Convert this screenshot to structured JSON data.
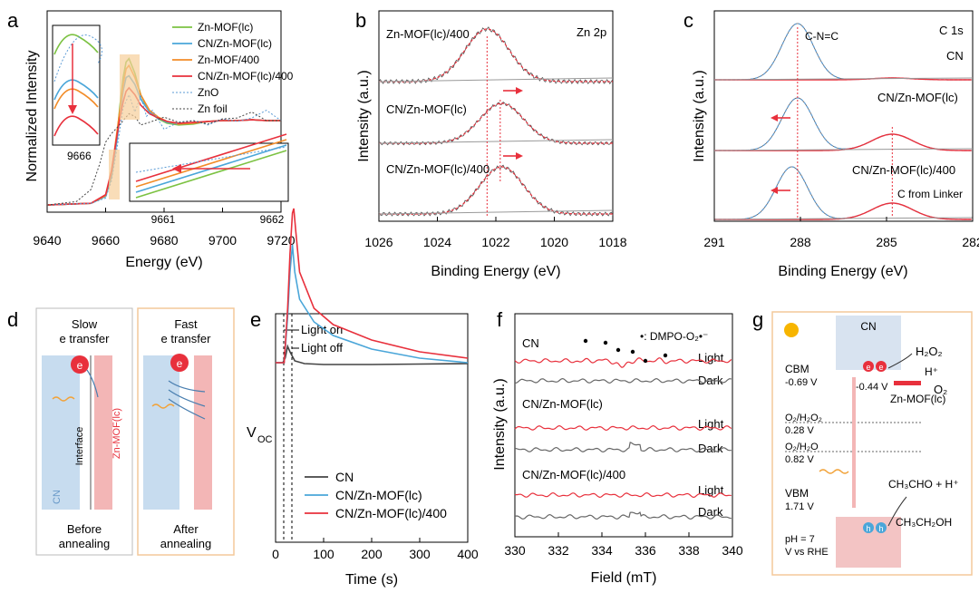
{
  "colors": {
    "green": "#7cc242",
    "blue": "#4aa6d9",
    "orange": "#f28c28",
    "red": "#e8303c",
    "darkgray": "#444444",
    "gray": "#8c8c8c",
    "fitblue": "#5b9bd5",
    "peach": "#f6cf9a",
    "panelBorder": "#f4c99a",
    "panelBg": "#fdf3e6"
  },
  "chart_data": [
    {
      "panel": "a",
      "type": "line",
      "xlabel": "Energy (eV)",
      "ylabel": "Normalized Intensity",
      "xlim": [
        9640,
        9720
      ],
      "xticks": [
        "9640",
        "9660",
        "9680",
        "9700",
        "9720"
      ],
      "series": [
        {
          "name": "Zn-MOF(lc)",
          "color": "green",
          "x": [
            9640,
            9655,
            9660,
            9662,
            9664,
            9665,
            9666,
            9667,
            9668,
            9670,
            9672,
            9675,
            9678,
            9681,
            9685,
            9690,
            9695,
            9700,
            9705,
            9710,
            9715,
            9720
          ],
          "y": [
            0.02,
            0.04,
            0.12,
            0.35,
            0.85,
            1.2,
            1.5,
            1.68,
            1.72,
            1.55,
            1.3,
            1.1,
            1.02,
            0.97,
            0.95,
            0.96,
            0.99,
            1.0,
            1.0,
            1.01,
            1.0,
            1.0
          ]
        },
        {
          "name": "CN/Zn-MOF(lc)",
          "color": "blue",
          "x": [
            9640,
            9655,
            9660,
            9662,
            9664,
            9665,
            9666,
            9667,
            9668,
            9670,
            9672,
            9675,
            9678,
            9681,
            9685,
            9690,
            9695,
            9700,
            9705,
            9710,
            9715,
            9720
          ],
          "y": [
            0.02,
            0.04,
            0.12,
            0.35,
            0.8,
            1.1,
            1.35,
            1.5,
            1.52,
            1.42,
            1.25,
            1.1,
            1.03,
            0.98,
            0.96,
            0.97,
            0.99,
            1.0,
            1.0,
            1.01,
            1.0,
            1.0
          ]
        },
        {
          "name": "Zn-MOF/400",
          "color": "orange",
          "x": [
            9640,
            9655,
            9660,
            9662,
            9664,
            9665,
            9666,
            9667,
            9668,
            9670,
            9672,
            9675,
            9678,
            9681,
            9685,
            9690,
            9695,
            9700,
            9705,
            9710,
            9715,
            9720
          ],
          "y": [
            0.02,
            0.04,
            0.13,
            0.4,
            0.9,
            1.15,
            1.42,
            1.6,
            1.64,
            1.5,
            1.3,
            1.12,
            1.04,
            0.99,
            0.96,
            0.97,
            0.99,
            1.0,
            1.0,
            1.01,
            1.0,
            1.0
          ]
        },
        {
          "name": "CN/Zn-MOF(lc)/400",
          "color": "red",
          "x": [
            9640,
            9655,
            9660,
            9662,
            9664,
            9665,
            9666,
            9667,
            9668,
            9670,
            9672,
            9675,
            9678,
            9681,
            9685,
            9690,
            9695,
            9700,
            9705,
            9710,
            9715,
            9720
          ],
          "y": [
            0.02,
            0.04,
            0.14,
            0.42,
            0.85,
            1.05,
            1.22,
            1.34,
            1.38,
            1.3,
            1.18,
            1.08,
            1.03,
            0.99,
            0.97,
            0.98,
            0.99,
            1.0,
            1.0,
            1.01,
            1.0,
            1.0
          ]
        },
        {
          "name": "ZnO",
          "color": "fitblue",
          "dash": "2,2",
          "x": [
            9640,
            9655,
            9660,
            9662,
            9664,
            9666,
            9668,
            9670,
            9672,
            9674,
            9676,
            9680,
            9685,
            9690,
            9695,
            9700,
            9705,
            9710,
            9715,
            9720
          ],
          "y": [
            0.02,
            0.04,
            0.1,
            0.3,
            0.7,
            1.15,
            1.3,
            1.1,
            1.28,
            1.05,
            1.12,
            0.9,
            0.98,
            1.0,
            0.95,
            1.02,
            0.99,
            1.03,
            1.12,
            1.0
          ]
        },
        {
          "name": "Zn foil",
          "color": "darkgray",
          "dash": "2,2",
          "x": [
            9640,
            9650,
            9655,
            9658,
            9660,
            9662,
            9664,
            9666,
            9668,
            9670,
            9672,
            9675,
            9680,
            9685,
            9690,
            9695,
            9700,
            9705,
            9710,
            9715,
            9720
          ],
          "y": [
            0.02,
            0.06,
            0.2,
            0.5,
            0.75,
            0.85,
            0.92,
            1.0,
            1.08,
            1.05,
            0.95,
            0.98,
            1.04,
            0.98,
            1.0,
            0.96,
            1.02,
            1.03,
            1.1,
            1.0,
            1.0
          ]
        }
      ],
      "legend": [
        "Zn-MOF(lc)",
        "CN/Zn-MOF(lc)",
        "Zn-MOF/400",
        "CN/Zn-MOF(lc)/400",
        "ZnO",
        "Zn foil"
      ],
      "inset_left_tick": "9666",
      "inset_right_ticks": [
        "9661",
        "9662"
      ]
    },
    {
      "panel": "b",
      "type": "line",
      "title": "Zn 2p",
      "xlabel": "Binding Energy (eV)",
      "ylabel": "Intensity (a.u.)",
      "xlim": [
        1026,
        1018
      ],
      "xticks": [
        "1026",
        "1024",
        "1022",
        "1020",
        "1018"
      ],
      "peaks": [
        1022.3,
        1021.8,
        1021.8
      ],
      "labels": [
        "Zn-MOF(lc)/400",
        "CN/Zn-MOF(lc)",
        "CN/Zn-MOF(lc)/400"
      ]
    },
    {
      "panel": "c",
      "type": "line",
      "title": "C 1s",
      "xlabel": "Binding Energy (eV)",
      "ylabel": "Intensity (a.u.)",
      "xlim": [
        291,
        282
      ],
      "xticks": [
        "291",
        "288",
        "285",
        "282"
      ],
      "peaks": [
        288.1,
        288.1,
        288.3
      ],
      "second_peak": 284.8,
      "labels": [
        "CN",
        "CN/Zn-MOF(lc)",
        "CN/Zn-MOF(lc)/400"
      ],
      "annotations": [
        "C-N=C",
        "C from Linker"
      ]
    },
    {
      "panel": "e",
      "type": "line",
      "xlabel": "Time (s)",
      "ylabel": "V",
      "ylabel_sub": "OC",
      "xlim": [
        0,
        400
      ],
      "xticks": [
        "0",
        "100",
        "200",
        "300",
        "400"
      ],
      "annotations": [
        "Light on",
        "Light off"
      ],
      "series": [
        {
          "name": "CN",
          "color": "darkgray",
          "t": [
            0,
            15,
            20,
            25,
            30,
            40,
            60,
            100,
            200,
            300,
            400
          ],
          "v": [
            0,
            0,
            -0.05,
            -0.18,
            -0.12,
            -0.02,
            0.01,
            0.02,
            0.02,
            0.015,
            0.01
          ]
        },
        {
          "name": "CN/Zn-MOF(lc)",
          "color": "blue",
          "t": [
            0,
            18,
            25,
            30,
            35,
            40,
            50,
            80,
            120,
            200,
            300,
            400
          ],
          "v": [
            0,
            0,
            -0.5,
            -1.0,
            -1.3,
            -1.0,
            -0.7,
            -0.45,
            -0.3,
            -0.15,
            -0.05,
            0.0
          ]
        },
        {
          "name": "CN/Zn-MOF(lc)/400",
          "color": "red",
          "t": [
            0,
            18,
            25,
            30,
            35,
            38,
            42,
            50,
            80,
            120,
            200,
            300,
            400
          ],
          "v": [
            0,
            0,
            -0.6,
            -1.2,
            -1.65,
            -1.7,
            -1.45,
            -1.0,
            -0.6,
            -0.42,
            -0.25,
            -0.12,
            -0.05
          ]
        }
      ]
    },
    {
      "panel": "f",
      "type": "line",
      "xlabel": "Field (mT)",
      "ylabel": "Intensity (a.u.)",
      "xlim": [
        330,
        340
      ],
      "xticks": [
        "330",
        "332",
        "334",
        "336",
        "338",
        "340"
      ],
      "legend_note": "•: DMPO-O₂•⁻",
      "groups": [
        "CN",
        "CN/Zn-MOF(lc)",
        "CN/Zn-MOF(lc)/400"
      ],
      "conditions": [
        "Light",
        "Dark"
      ]
    }
  ],
  "panels": {
    "a": "a",
    "b": "b",
    "c": "c",
    "d": "d",
    "e": "e",
    "f": "f",
    "g": "g"
  },
  "diagram_d": {
    "left_title": "Slow\ne transfer",
    "left_title1": "Slow",
    "left_title2": "e transfer",
    "right_title1": "Fast",
    "right_title2": "e transfer",
    "electron": "e",
    "cn": "CN",
    "interface": "Interface",
    "mof": "Zn-MOF(lc)",
    "left_bottom1": "Before",
    "left_bottom2": "annealing",
    "right_bottom1": "After",
    "right_bottom2": "annealing"
  },
  "diagram_g": {
    "cn": "CN",
    "cbm": "CBM",
    "cbm_v": "-0.69 V",
    "mof_v": "-0.44 V",
    "mof": "Zn-MOF(lc)",
    "h2o2": "H₂O₂",
    "hplus": "H⁺",
    "o2": "O₂",
    "o2h2o2": "O₂/H₂O₂",
    "o2h2o2_v": "0.28 V",
    "o2h2o": "O₂/H₂O",
    "o2h2o_v": "0.82 V",
    "vbm": "VBM",
    "vbm_v": "1.71 V",
    "ch3cho": "CH₃CHO + H⁺",
    "ch3ch2oh": "CH₃CH₂OH",
    "ph": "pH = 7",
    "vrhe": "V vs RHE",
    "e": "e",
    "h": "h"
  }
}
